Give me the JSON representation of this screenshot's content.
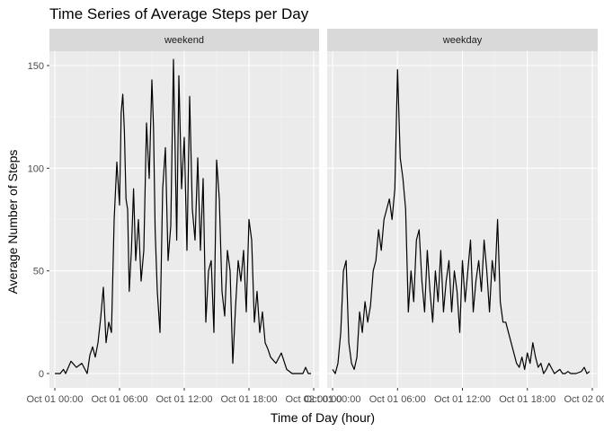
{
  "chart_data": {
    "type": "line",
    "title": "Time Series of Average Steps per Day",
    "xlabel": "Time of Day (hour)",
    "ylabel": "Average Number of Steps",
    "xlim": [
      -0.5,
      24.5
    ],
    "ylim": [
      -7,
      157
    ],
    "x_tick_values": [
      0,
      6,
      12,
      18,
      24
    ],
    "x_tick_labels": [
      "Oct 01 00:00",
      "Oct 01 06:00",
      "Oct 01 12:00",
      "Oct 01 18:00",
      "Oct 02 00:00"
    ],
    "y_tick_values": [
      0,
      50,
      100,
      150
    ],
    "y_tick_labels": [
      "0",
      "50",
      "100",
      "150"
    ],
    "grid": true,
    "legend": "none",
    "colors": {
      "panel": "#ebebeb",
      "strip": "#d9d9d9",
      "grid_major": "#ffffff",
      "line": "#000000"
    },
    "series": [
      {
        "name": "weekend",
        "x": [
          0,
          0.5,
          0.8,
          1.0,
          1.5,
          2.0,
          2.5,
          3.0,
          3.25,
          3.5,
          3.75,
          4.0,
          4.25,
          4.5,
          4.75,
          5.0,
          5.25,
          5.5,
          5.75,
          6.0,
          6.15,
          6.3,
          6.45,
          6.6,
          6.75,
          6.9,
          7.1,
          7.3,
          7.5,
          7.75,
          8.0,
          8.25,
          8.5,
          8.75,
          9.0,
          9.15,
          9.3,
          9.5,
          9.75,
          10.0,
          10.25,
          10.5,
          10.75,
          11.0,
          11.15,
          11.3,
          11.5,
          11.75,
          12.0,
          12.25,
          12.5,
          12.75,
          13.0,
          13.25,
          13.5,
          13.75,
          14.0,
          14.25,
          14.5,
          14.75,
          15.0,
          15.25,
          15.5,
          15.75,
          16.0,
          16.25,
          16.5,
          16.75,
          17.0,
          17.25,
          17.5,
          17.75,
          18.0,
          18.25,
          18.5,
          18.75,
          19.0,
          19.25,
          19.5,
          19.75,
          20.0,
          20.5,
          21.0,
          21.5,
          22.0,
          22.5,
          23.0,
          23.25,
          23.5,
          23.75
        ],
        "y": [
          0,
          0,
          2,
          0,
          6,
          3,
          5,
          0,
          9,
          13,
          8,
          15,
          27,
          42,
          15,
          25,
          20,
          75,
          103,
          82,
          127,
          136,
          118,
          85,
          80,
          40,
          60,
          90,
          55,
          75,
          45,
          60,
          122,
          95,
          143,
          120,
          70,
          40,
          20,
          90,
          110,
          55,
          72,
          153,
          110,
          65,
          145,
          90,
          115,
          60,
          135,
          80,
          65,
          105,
          60,
          95,
          25,
          50,
          55,
          20,
          104,
          85,
          40,
          28,
          60,
          50,
          5,
          32,
          55,
          45,
          60,
          30,
          75,
          65,
          25,
          40,
          20,
          30,
          15,
          12,
          8,
          5,
          10,
          2,
          0,
          0,
          0,
          3,
          0,
          0
        ]
      },
      {
        "name": "weekday",
        "x": [
          0,
          0.25,
          0.5,
          0.75,
          1.0,
          1.25,
          1.5,
          1.75,
          2.0,
          2.25,
          2.5,
          2.75,
          3.0,
          3.25,
          3.5,
          3.75,
          4.0,
          4.25,
          4.5,
          4.75,
          5.0,
          5.25,
          5.5,
          5.75,
          6.0,
          6.25,
          6.5,
          6.75,
          7.0,
          7.25,
          7.5,
          7.75,
          8.0,
          8.25,
          8.5,
          8.75,
          9.0,
          9.25,
          9.5,
          9.75,
          10.0,
          10.25,
          10.5,
          10.75,
          11.0,
          11.25,
          11.5,
          11.75,
          12.0,
          12.25,
          12.5,
          12.75,
          13.0,
          13.25,
          13.5,
          13.75,
          14.0,
          14.25,
          14.5,
          14.75,
          15.0,
          15.25,
          15.5,
          15.75,
          16.0,
          16.25,
          16.5,
          16.75,
          17.0,
          17.25,
          17.5,
          17.75,
          18.0,
          18.25,
          18.5,
          18.75,
          19.0,
          19.25,
          19.5,
          19.75,
          20.0,
          20.5,
          21.0,
          21.25,
          21.5,
          21.75,
          22.0,
          22.5,
          23.0,
          23.25,
          23.5,
          23.75
        ],
        "y": [
          2,
          0,
          5,
          20,
          50,
          55,
          15,
          5,
          2,
          8,
          30,
          20,
          35,
          25,
          33,
          50,
          55,
          70,
          60,
          75,
          80,
          85,
          75,
          90,
          148,
          105,
          95,
          80,
          30,
          50,
          35,
          65,
          70,
          45,
          30,
          60,
          40,
          25,
          50,
          35,
          60,
          30,
          45,
          55,
          30,
          50,
          40,
          20,
          55,
          35,
          50,
          65,
          30,
          45,
          55,
          40,
          65,
          50,
          30,
          55,
          45,
          75,
          35,
          25,
          25,
          20,
          15,
          10,
          5,
          3,
          8,
          2,
          10,
          5,
          15,
          8,
          3,
          5,
          0,
          2,
          5,
          0,
          2,
          0,
          0,
          1,
          0,
          0,
          1,
          3,
          0,
          1
        ]
      }
    ]
  }
}
